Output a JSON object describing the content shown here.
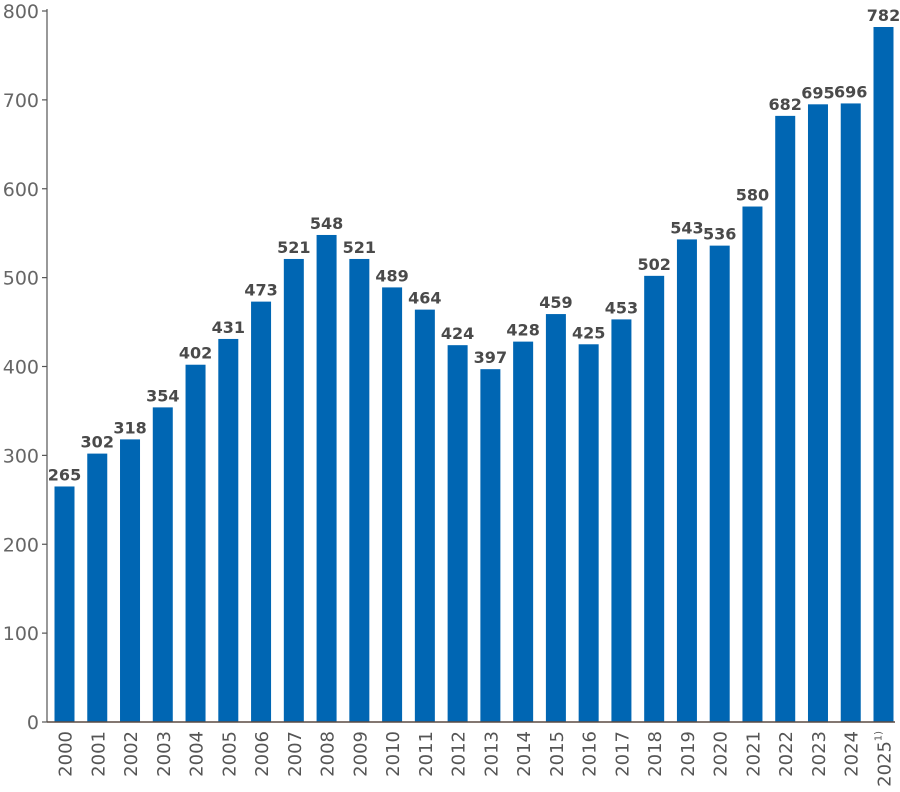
{
  "chart_data": {
    "type": "bar",
    "title": "",
    "xlabel": "",
    "ylabel": "",
    "ylim": [
      0,
      800
    ],
    "yticks": [
      "0",
      "100",
      "200",
      "300",
      "400",
      "500",
      "600",
      "700",
      "800"
    ],
    "grid": false,
    "bar_color": "#0066b3",
    "categories": [
      "2000",
      "2001",
      "2002",
      "2003",
      "2004",
      "2005",
      "2006",
      "2007",
      "2008",
      "2009",
      "2010",
      "2011",
      "2012",
      "2013",
      "2014",
      "2015",
      "2016",
      "2017",
      "2018",
      "2019",
      "2020",
      "2021",
      "2022",
      "2023",
      "2024",
      "2025"
    ],
    "category_footnotes": {
      "2025": "1)"
    },
    "values": [
      265,
      302,
      318,
      354,
      402,
      431,
      473,
      521,
      548,
      521,
      489,
      464,
      424,
      397,
      428,
      459,
      425,
      453,
      502,
      543,
      536,
      580,
      682,
      695,
      696,
      782
    ]
  }
}
